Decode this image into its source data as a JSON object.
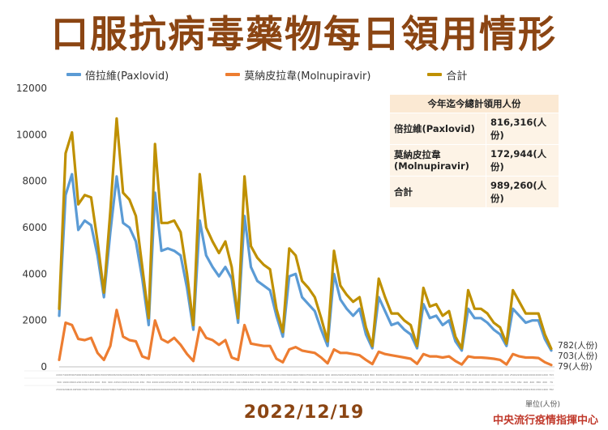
{
  "title": "口服抗病毒藥物每日領用情形",
  "date": "2022/12/19",
  "unit_note": "單位(人份)",
  "org": "中央流行疫情指揮中心",
  "summary_table": {
    "header": "今年迄今總計領用人份",
    "rows": [
      {
        "label": "倍拉維(Paxlovid)",
        "value": "816,316(人份)"
      },
      {
        "label": "莫納皮拉韋 (Molnupiravir)",
        "value": "172,944(人份)"
      },
      {
        "label": "合計",
        "value": "989,260(人份)"
      }
    ]
  },
  "colors": {
    "paxlovid": "#5b9bd5",
    "molnupiravir": "#ed7d31",
    "total": "#bf9000",
    "title": "#8b4513",
    "org": "#c0392b"
  },
  "chart_data": {
    "type": "line",
    "ylim": [
      0,
      12000
    ],
    "yticks": [
      0,
      2000,
      4000,
      6000,
      8000,
      10000,
      12000
    ],
    "grid": false,
    "legend_position": "top",
    "series": [
      {
        "name": "倍拉維(Paxlovid)",
        "color": "#5b9bd5",
        "values": [
          2200,
          7400,
          8300,
          5900,
          6300,
          6100,
          4800,
          3000,
          5800,
          8200,
          6200,
          6000,
          5400,
          3800,
          1800,
          7500,
          5000,
          5100,
          5000,
          4800,
          3400,
          1600,
          6300,
          4800,
          4300,
          3900,
          4300,
          3800,
          1900,
          6500,
          4300,
          3700,
          3500,
          3300,
          2200,
          1300,
          3900,
          4000,
          3000,
          2700,
          2400,
          1600,
          900,
          4000,
          2900,
          2500,
          2200,
          2500,
          1400,
          800,
          3000,
          2400,
          1800,
          1900,
          1600,
          1400,
          800,
          2700,
          2100,
          2200,
          1800,
          2000,
          1100,
          700,
          2500,
          2100,
          2100,
          1900,
          1600,
          1400,
          900,
          2500,
          2200,
          1900,
          2000,
          2000,
          1200,
          703
        ]
      },
      {
        "name": "莫納皮拉韋(Molnupiravir)",
        "color": "#ed7d31",
        "values": [
          300,
          1900,
          1800,
          1200,
          1150,
          1250,
          600,
          300,
          900,
          2450,
          1300,
          1150,
          1100,
          450,
          350,
          2000,
          1200,
          1050,
          1250,
          950,
          550,
          250,
          1700,
          1250,
          1150,
          950,
          1150,
          400,
          300,
          1800,
          1000,
          950,
          900,
          900,
          350,
          200,
          750,
          850,
          700,
          650,
          600,
          400,
          150,
          750,
          600,
          600,
          550,
          500,
          300,
          120,
          650,
          550,
          500,
          450,
          400,
          350,
          130,
          550,
          450,
          450,
          400,
          450,
          250,
          100,
          450,
          400,
          400,
          380,
          350,
          300,
          100,
          550,
          450,
          400,
          400,
          380,
          200,
          79
        ]
      },
      {
        "name": "合計",
        "color": "#bf9000",
        "values": [
          2500,
          9200,
          10100,
          7000,
          7400,
          7300,
          5400,
          3200,
          6700,
          10700,
          7500,
          7200,
          6500,
          4300,
          2100,
          9600,
          6200,
          6200,
          6300,
          5800,
          4000,
          1800,
          8300,
          6000,
          5400,
          4900,
          5400,
          4300,
          2100,
          8200,
          5200,
          4700,
          4400,
          4200,
          2500,
          1500,
          5100,
          4800,
          3700,
          3400,
          3000,
          2100,
          1100,
          5000,
          3500,
          3100,
          2800,
          3000,
          1700,
          900,
          3800,
          3000,
          2300,
          2300,
          2000,
          1800,
          900,
          3400,
          2600,
          2700,
          2200,
          2400,
          1300,
          800,
          3300,
          2500,
          2500,
          2300,
          1900,
          1700,
          1000,
          3300,
          2800,
          2300,
          2300,
          2300,
          1400,
          782
        ]
      }
    ],
    "end_labels": [
      "782(人份)",
      "703(人份)",
      "79(人份)"
    ]
  }
}
